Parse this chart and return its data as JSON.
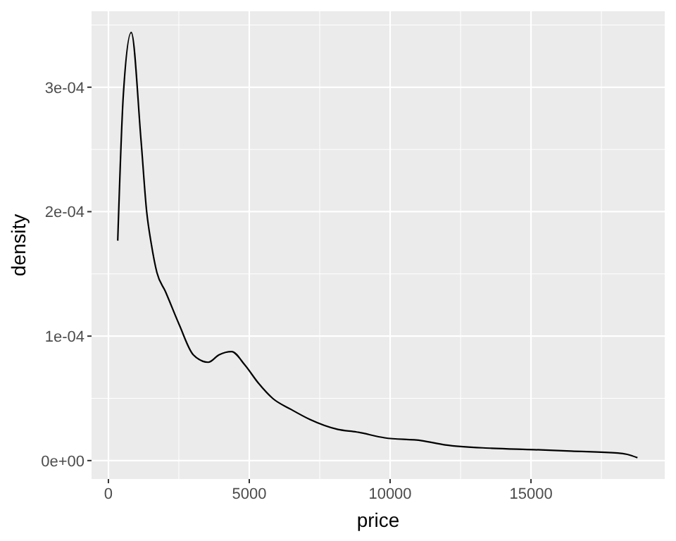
{
  "chart_data": {
    "type": "line",
    "xlabel": "price",
    "ylabel": "density",
    "x": [
      331,
      530,
      811,
      1159,
      1358,
      1523,
      1722,
      2020,
      2517,
      3014,
      3544,
      3925,
      4372,
      4836,
      5333,
      5830,
      6492,
      7155,
      8149,
      8810,
      9803,
      11128,
      11956,
      13612,
      15103,
      16428,
      18084,
      18415,
      18780
    ],
    "series": [
      {
        "color": "#000000",
        "values": [
          0.0001767,
          0.000294,
          0.000344,
          0.000257,
          0.0002,
          0.000174,
          0.000151,
          0.000136,
          0.000109,
          8.5e-05,
          7.9e-05,
          8.5e-05,
          8.76e-05,
          7.7e-05,
          6.2e-05,
          5e-05,
          4.1e-05,
          3.3e-05,
          2.5e-05,
          2.3e-05,
          1.83e-05,
          1.6e-05,
          1.26e-05,
          9.9e-06,
          8.8e-06,
          7.6e-06,
          6.1e-06,
          5e-06,
          2.3e-06
        ]
      }
    ],
    "xlim": [
      -599,
      19748
    ],
    "ylim": [
      -1.48e-05,
      0.000361
    ],
    "xticks": [
      0,
      5000,
      10000,
      15000
    ],
    "yticks": [
      {
        "value": 0,
        "label": "0e+00"
      },
      {
        "value": 0.0001,
        "label": "1e-04"
      },
      {
        "value": 0.0002,
        "label": "2e-04"
      },
      {
        "value": 0.0003,
        "label": "3e-04"
      }
    ],
    "grid": true,
    "marker": "none",
    "line_style": "solid"
  }
}
